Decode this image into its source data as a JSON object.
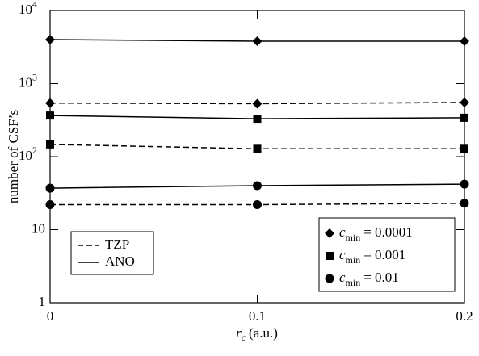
{
  "chart_data": {
    "type": "line",
    "y_label": "number of CSF’s",
    "x_label": {
      "symbol": "r",
      "subscript": "c",
      "text": "(a.u.)"
    },
    "x": [
      0,
      0.1,
      0.2
    ],
    "xlim": [
      0,
      0.2
    ],
    "xticks": [
      0,
      0.1,
      0.2
    ],
    "ylim": [
      1,
      10000
    ],
    "log_y": true,
    "yticks": [
      1,
      10,
      {
        "value": 100,
        "label": "10",
        "exponent": "2"
      },
      {
        "value": 1000,
        "label": "10",
        "exponent": "3"
      },
      {
        "value": 10000,
        "label": "10",
        "exponent": "4"
      }
    ],
    "color": "#000000",
    "line_legend": [
      {
        "name": "TZP",
        "dashed": true
      },
      {
        "name": "ANO",
        "dashed": false
      }
    ],
    "marker_legend": [
      {
        "symbol": "c",
        "subscript": "min",
        "text": "= 0.0001",
        "marker": "diamond"
      },
      {
        "symbol": "c",
        "subscript": "min",
        "text": "= 0.001",
        "marker": "square"
      },
      {
        "symbol": "c",
        "subscript": "min",
        "text": "= 0.01",
        "marker": "circle"
      }
    ],
    "series": [
      {
        "marker": "diamond",
        "dashed": false,
        "values": [
          4000,
          3800,
          3800
        ]
      },
      {
        "marker": "diamond",
        "dashed": true,
        "values": [
          540,
          530,
          550
        ]
      },
      {
        "marker": "square",
        "dashed": false,
        "values": [
          365,
          330,
          340
        ]
      },
      {
        "marker": "square",
        "dashed": true,
        "values": [
          147,
          128,
          128
        ]
      },
      {
        "marker": "circle",
        "dashed": false,
        "values": [
          37,
          40,
          42
        ]
      },
      {
        "marker": "circle",
        "dashed": true,
        "values": [
          22,
          22,
          23
        ]
      }
    ]
  }
}
